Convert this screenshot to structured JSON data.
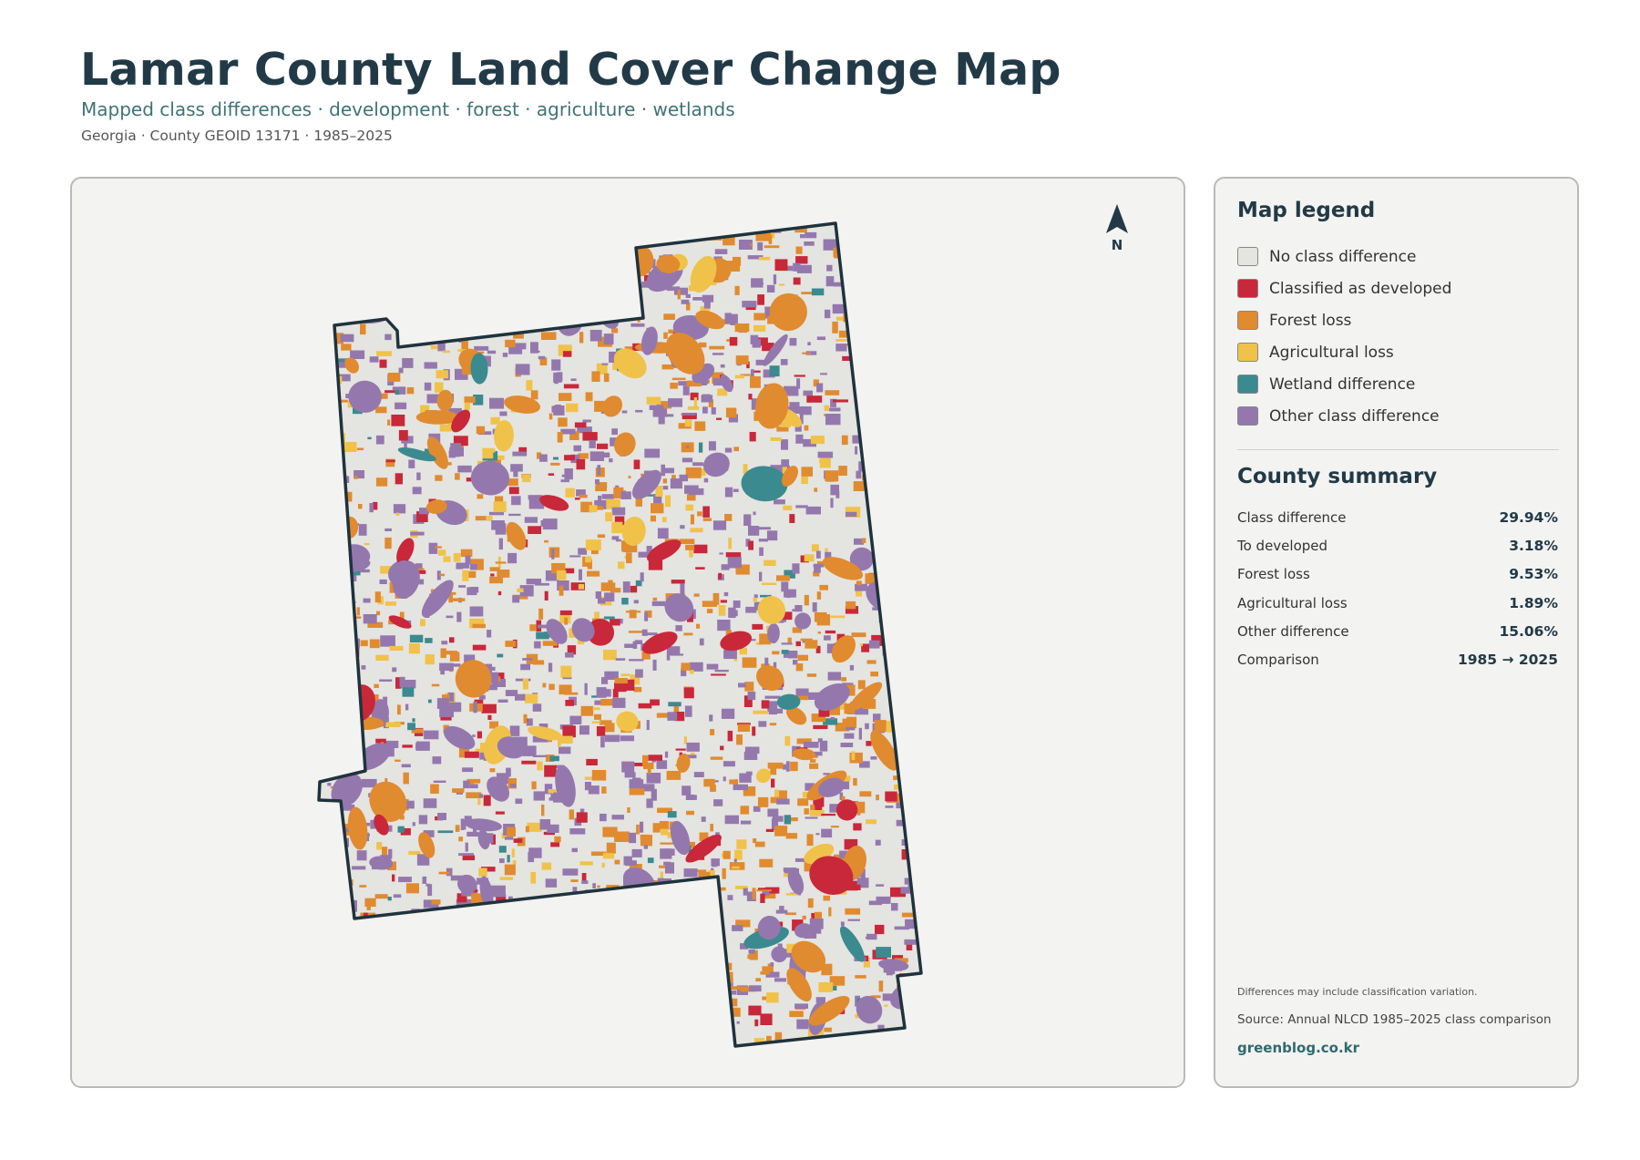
{
  "header": {
    "title": "Lamar County Land Cover Change Map",
    "subtitle": "Mapped class differences · development · forest · agriculture · wetlands",
    "meta": "Georgia · County GEOID 13171 · 1985–2025"
  },
  "map": {
    "north_label": "N",
    "colors": {
      "background": "#f3f3f1",
      "county_fill": "#e4e4e1",
      "county_outline": "#1f333d"
    }
  },
  "legend": {
    "title": "Map legend",
    "items": [
      {
        "label": "No class difference",
        "color": "#e4e4e1"
      },
      {
        "label": "Classified as developed",
        "color": "#c8283a"
      },
      {
        "label": "Forest loss",
        "color": "#e08b2f"
      },
      {
        "label": "Agricultural loss",
        "color": "#f0c24a"
      },
      {
        "label": "Wetland difference",
        "color": "#3b8a8f"
      },
      {
        "label": "Other class difference",
        "color": "#9478ad"
      }
    ]
  },
  "summary": {
    "title": "County summary",
    "rows": [
      {
        "label": "Class difference",
        "value": "29.94%"
      },
      {
        "label": "To developed",
        "value": "3.18%"
      },
      {
        "label": "Forest loss",
        "value": "9.53%"
      },
      {
        "label": "Agricultural loss",
        "value": "1.89%"
      },
      {
        "label": "Other difference",
        "value": "15.06%"
      },
      {
        "label": "Comparison",
        "value": "1985 → 2025"
      }
    ]
  },
  "footer": {
    "note": "Differences may include classification variation.",
    "source": "Source: Annual NLCD 1985–2025 class comparison",
    "brand": "greenblog.co.kr"
  }
}
